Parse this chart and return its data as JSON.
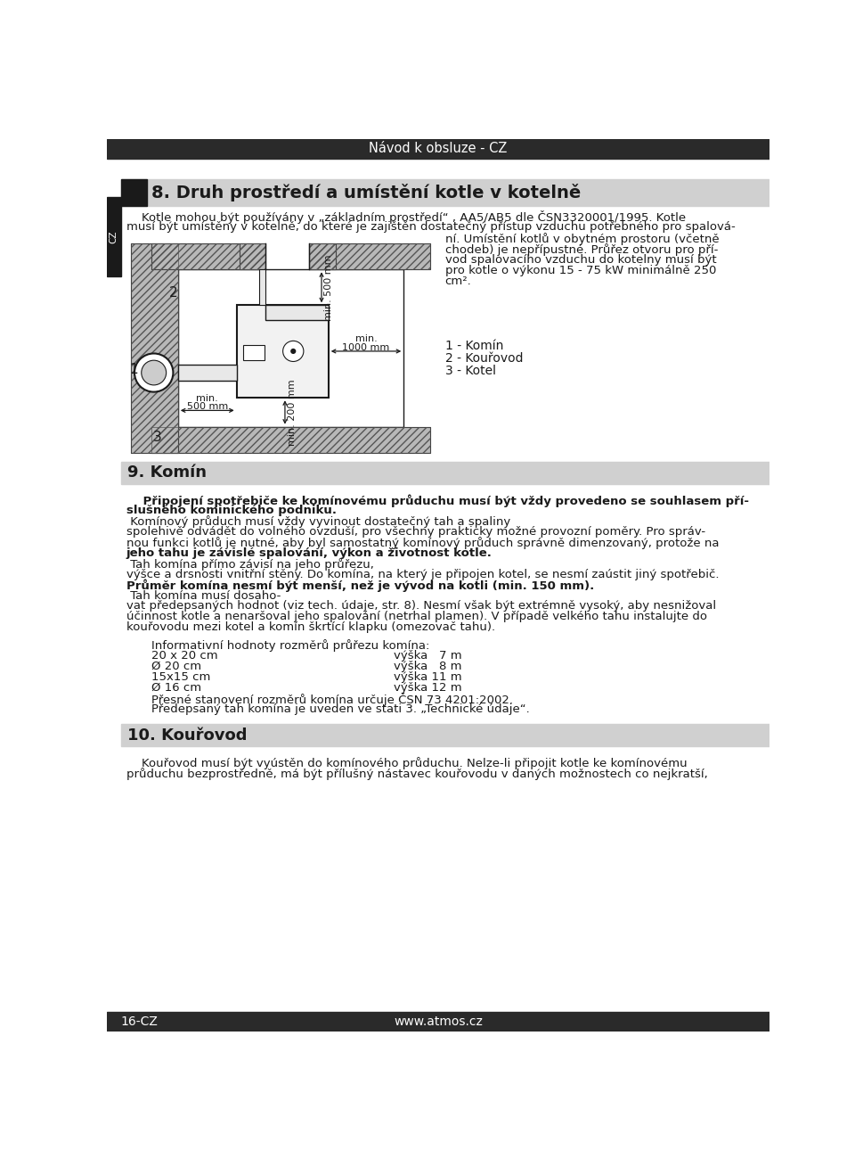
{
  "page_bg": "#ffffff",
  "header_bg": "#2a2a2a",
  "header_text": "Návod k obsluze - CZ",
  "header_text_color": "#ffffff",
  "footer_bg": "#2a2a2a",
  "footer_left": "16-CZ",
  "footer_right": "www.atmos.cz",
  "footer_text_color": "#ffffff",
  "section_bg": "#d0d0d0",
  "side_label": "CZ",
  "sec8_title": "8. Druh prostředí a umístění kotle v kotelně",
  "para1_line1": "    Kotle mohou být používány v „základním prostředí“ , AA5/AB5 dle ČSN3320001/1995. Kotle",
  "para1_line2": "musí být umístěny v kotelně, do které je zajištěn dostatečný přístup vzduchu potřebného pro spalová-",
  "right_para": [
    "ní. Umístění kotlů v obytném prostoru (včetně",
    "chodeb) je nepřípustné. Průřez otvoru pro pří-",
    "vod spalovacího vzduchu do kotelny musí být",
    "pro kotle o výkonu 15 - 75 kW minimálně 250",
    "cm²."
  ],
  "legend1": "1 - Komín",
  "legend2": "2 - Kouřovod",
  "legend3": "3 - Kotel",
  "dim_500h": "min.\n500 mm",
  "dim_500v": "min.\n500 mm",
  "dim_1000h": "min.\n1000 mm",
  "dim_200v": "min.\n200 mm",
  "label1": "1",
  "label2": "2",
  "label3": "3",
  "sec9_title": "9. Komín",
  "sec9_body": [
    [
      "    Připojení spotřebiče ke komínovému průduchu musí být vždy provedeno se souhlasem pří-",
      "bold"
    ],
    [
      "slušného kominického podniku.",
      "bold"
    ],
    [
      " Komínový průduch musí vždy vyvinout dostatečný tah a spaliny",
      "normal"
    ],
    [
      "spolehivě odvádět do volného ovzduší, pro všechny prakticky možné provozní poměry. Pro správ-",
      "normal"
    ],
    [
      "nou funkci kotlů je nutné, aby byl samostatný komínový průduch správně dimenzovaný, protože na",
      "normal"
    ],
    [
      "jeho tahu je závislé spalování, výkon a životnost kotle.",
      "bold"
    ],
    [
      " Tah komína přímo závisí na jeho průřezu,",
      "normal"
    ],
    [
      "výšce a drsnosti vnitřní stěny. Do komína, na který je připojen kotel, se nesmí zaústit jiný spotřebič.",
      "normal"
    ],
    [
      "Průměr komína nesmí být menší, než je vývod na kotli (min. 150 mm).",
      "bold"
    ],
    [
      " Tah komína musí dosaho-",
      "normal"
    ],
    [
      "vat předepsaných hodnot (viz tech. údaje, str. 8). Nesmí však být extrémně vysoký, aby nesnižoval",
      "normal"
    ],
    [
      "účinnost kotle a nenaršoval jeho spalování (netrhal plamen). V případě velkého tahu instalujte do",
      "normal"
    ],
    [
      "kouřovodu mezi kotel a komín škrtící klapku (omezovač tahu).",
      "normal"
    ]
  ],
  "info_heading": "Informativní hodnoty rozměrů průřezu komína:",
  "info_lines": [
    [
      "20 x 20 cm",
      "výška   7 m"
    ],
    [
      "Ø 20 cm",
      "výška   8 m"
    ],
    [
      "15x15 cm",
      "výška 11 m"
    ],
    [
      "Ø 16 cm",
      "výška 12 m"
    ]
  ],
  "info_note1": "Přesné stanovení rozměrů komína určuje ČSN 73 4201:2002.",
  "info_note2": "Předepsaný tah komína je uveden ve stati 3. „Technické údaje“.",
  "sec10_title": "10. Kouřovod",
  "sec10_body": [
    "    Kouřovod musí být vyústěn do komínového průduchu. Nelze-li připojit kotle ke komínovému",
    "průduchu bezprostředně, má být přílušný nástavec kouřovodu v daných možnostech co nejkratší,"
  ]
}
